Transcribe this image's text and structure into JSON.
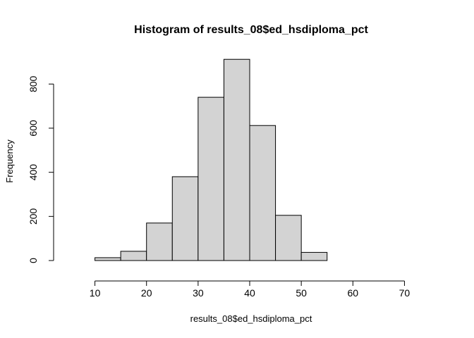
{
  "chart_data": {
    "type": "bar",
    "title": "Histogram of results_08$ed_hsdiploma_pct",
    "xlabel": "results_08$ed_hsdiploma_pct",
    "ylabel": "Frequency",
    "bins": [
      {
        "from": 5,
        "to": 10,
        "count": 0
      },
      {
        "from": 10,
        "to": 15,
        "count": 13
      },
      {
        "from": 15,
        "to": 20,
        "count": 42
      },
      {
        "from": 20,
        "to": 25,
        "count": 170
      },
      {
        "from": 25,
        "to": 30,
        "count": 380
      },
      {
        "from": 30,
        "to": 35,
        "count": 740
      },
      {
        "from": 35,
        "to": 40,
        "count": 912
      },
      {
        "from": 40,
        "to": 45,
        "count": 612
      },
      {
        "from": 45,
        "to": 50,
        "count": 205
      },
      {
        "from": 50,
        "to": 55,
        "count": 37
      },
      {
        "from": 55,
        "to": 60,
        "count": 0
      },
      {
        "from": 60,
        "to": 65,
        "count": 0
      },
      {
        "from": 65,
        "to": 70,
        "count": 0
      },
      {
        "from": 70,
        "to": 75,
        "count": 0
      }
    ],
    "xlim": [
      5,
      75
    ],
    "ylim": [
      0,
      900
    ],
    "x_ticks": [
      10,
      20,
      30,
      40,
      50,
      60,
      70
    ],
    "y_ticks": [
      0,
      200,
      400,
      600,
      800
    ],
    "bar_fill": "#d3d3d3",
    "bar_stroke": "#000000",
    "grid": false,
    "legend": "none"
  }
}
